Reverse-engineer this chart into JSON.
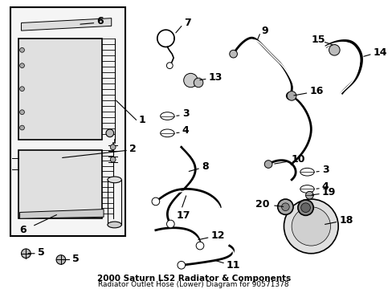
{
  "title_line1": "2000 Saturn LS2 Radiator & Components",
  "title_line2": "Radiator Outlet Hose (Lower) Diagram for 90571378",
  "bg": "#f0f0f0",
  "white": "#ffffff",
  "black": "#000000",
  "gray1": "#cccccc",
  "gray2": "#e8e8e8"
}
